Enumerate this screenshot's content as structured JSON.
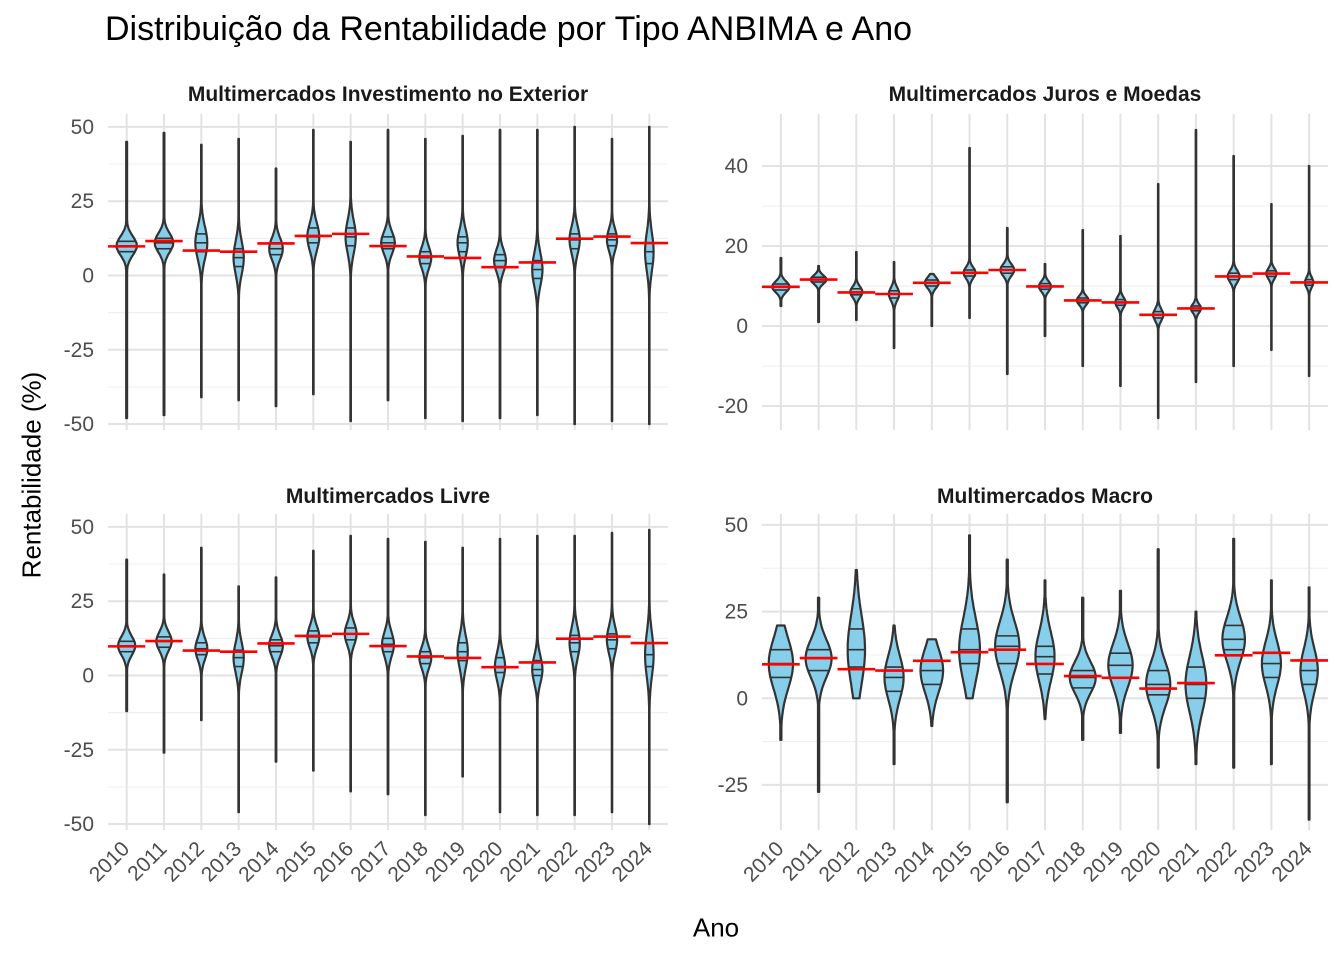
{
  "chart_data": {
    "type": "violin",
    "title": "Distribuição da Rentabilidade por Tipo ANBIMA e Ano",
    "xlabel": "Ano",
    "ylabel": "Rentabilidade (%)",
    "categories": [
      "2010",
      "2011",
      "2012",
      "2013",
      "2014",
      "2015",
      "2016",
      "2017",
      "2018",
      "2019",
      "2020",
      "2021",
      "2022",
      "2023",
      "2024"
    ],
    "reference_line_color": "#ff0000",
    "violin_fill": "#87ceeb",
    "violin_stroke": "#333333",
    "reference_values": [
      9.8,
      11.6,
      8.4,
      8.0,
      10.8,
      13.3,
      14.0,
      9.9,
      6.4,
      5.9,
      2.8,
      4.4,
      12.4,
      13.1,
      10.9
    ],
    "panels": [
      {
        "name": "Multimercados Investimento no Exterior",
        "ylim": [
          -52,
          53
        ],
        "yticks": [
          -50,
          -25,
          0,
          25,
          50
        ],
        "ytick_labels": [
          "-50",
          "-25",
          "0",
          "25",
          "50"
        ],
        "violins": [
          {
            "min": -48,
            "max": 45,
            "q1": 8,
            "median": 10,
            "q3": 11.5,
            "width": 0.6
          },
          {
            "min": -47,
            "max": 48,
            "q1": 9,
            "median": 11,
            "q3": 12.5,
            "width": 0.55
          },
          {
            "min": -41,
            "max": 44,
            "q1": 8,
            "median": 11,
            "q3": 14,
            "width": 0.35
          },
          {
            "min": -42,
            "max": 46,
            "q1": 3,
            "median": 6,
            "q3": 9,
            "width": 0.3
          },
          {
            "min": -44,
            "max": 36,
            "q1": 7,
            "median": 9,
            "q3": 11,
            "width": 0.4
          },
          {
            "min": -40,
            "max": 49,
            "q1": 11,
            "median": 13,
            "q3": 16,
            "width": 0.35
          },
          {
            "min": -49,
            "max": 45,
            "q1": 10,
            "median": 13,
            "q3": 16,
            "width": 0.3
          },
          {
            "min": -42,
            "max": 49,
            "q1": 9,
            "median": 11,
            "q3": 13,
            "width": 0.4
          },
          {
            "min": -48,
            "max": 46,
            "q1": 4,
            "median": 6,
            "q3": 8,
            "width": 0.35
          },
          {
            "min": -49,
            "max": 47,
            "q1": 8,
            "median": 11,
            "q3": 13,
            "width": 0.3
          },
          {
            "min": -48,
            "max": 49,
            "q1": 3,
            "median": 5,
            "q3": 7,
            "width": 0.35
          },
          {
            "min": -47,
            "max": 49,
            "q1": -1,
            "median": 2,
            "q3": 5,
            "width": 0.3
          },
          {
            "min": -50,
            "max": 50,
            "q1": 9,
            "median": 12,
            "q3": 14,
            "width": 0.3
          },
          {
            "min": -49,
            "max": 46,
            "q1": 10,
            "median": 12,
            "q3": 14,
            "width": 0.3
          },
          {
            "min": -50,
            "max": 50,
            "q1": 4,
            "median": 8,
            "q3": 11,
            "width": 0.25
          }
        ]
      },
      {
        "name": "Multimercados Juros e Moedas",
        "ylim": [
          -26,
          52
        ],
        "yticks": [
          -20,
          0,
          20,
          40
        ],
        "ytick_labels": [
          "-20",
          "0",
          "20",
          "40"
        ],
        "violins": [
          {
            "min": 5,
            "max": 17,
            "q1": 9,
            "median": 9.8,
            "q3": 10.5,
            "width": 0.5
          },
          {
            "min": 1,
            "max": 15,
            "q1": 11,
            "median": 11.6,
            "q3": 12.2,
            "width": 0.45
          },
          {
            "min": 1.5,
            "max": 18.5,
            "q1": 7.8,
            "median": 8.5,
            "q3": 9.3,
            "width": 0.35
          },
          {
            "min": -5.5,
            "max": 16,
            "q1": 7,
            "median": 8,
            "q3": 8.8,
            "width": 0.3
          },
          {
            "min": 0,
            "max": 13,
            "q1": 10,
            "median": 10.8,
            "q3": 11.5,
            "width": 0.4
          },
          {
            "min": 2,
            "max": 44.5,
            "q1": 12.5,
            "median": 13.3,
            "q3": 14,
            "width": 0.35
          },
          {
            "min": -12,
            "max": 24.5,
            "q1": 13.2,
            "median": 14,
            "q3": 14.8,
            "width": 0.4
          },
          {
            "min": -2.5,
            "max": 15.5,
            "q1": 9.2,
            "median": 9.9,
            "q3": 10.6,
            "width": 0.35
          },
          {
            "min": -10,
            "max": 24,
            "q1": 5.8,
            "median": 6.4,
            "q3": 7,
            "width": 0.35
          },
          {
            "min": -15,
            "max": 22.5,
            "q1": 5.2,
            "median": 5.9,
            "q3": 6.6,
            "width": 0.3
          },
          {
            "min": -23,
            "max": 35.5,
            "q1": 2,
            "median": 2.8,
            "q3": 3.6,
            "width": 0.3
          },
          {
            "min": -14,
            "max": 49,
            "q1": 3.8,
            "median": 4.4,
            "q3": 5,
            "width": 0.3
          },
          {
            "min": -10,
            "max": 42.5,
            "q1": 11.6,
            "median": 12.4,
            "q3": 13.2,
            "width": 0.35
          },
          {
            "min": -6,
            "max": 30.5,
            "q1": 12.4,
            "median": 13.1,
            "q3": 13.8,
            "width": 0.3
          },
          {
            "min": -12.5,
            "max": 40,
            "q1": 10.2,
            "median": 10.9,
            "q3": 11.6,
            "width": 0.25
          }
        ]
      },
      {
        "name": "Multimercados Livre",
        "ylim": [
          -52,
          53
        ],
        "yticks": [
          -50,
          -25,
          0,
          25,
          50
        ],
        "ytick_labels": [
          "-50",
          "-25",
          "0",
          "25",
          "50"
        ],
        "violins": [
          {
            "min": -12,
            "max": 39,
            "q1": 8,
            "median": 10,
            "q3": 11.5,
            "width": 0.5
          },
          {
            "min": -26,
            "max": 34,
            "q1": 9.5,
            "median": 11.5,
            "q3": 13,
            "width": 0.45
          },
          {
            "min": -15,
            "max": 43,
            "q1": 7,
            "median": 9,
            "q3": 11,
            "width": 0.35
          },
          {
            "min": -46,
            "max": 30,
            "q1": 3,
            "median": 6,
            "q3": 8.5,
            "width": 0.3
          },
          {
            "min": -29,
            "max": 33,
            "q1": 8,
            "median": 10,
            "q3": 12,
            "width": 0.4
          },
          {
            "min": -32,
            "max": 42,
            "q1": 11,
            "median": 13,
            "q3": 15,
            "width": 0.35
          },
          {
            "min": -39,
            "max": 47,
            "q1": 12,
            "median": 14,
            "q3": 16,
            "width": 0.35
          },
          {
            "min": -40,
            "max": 46,
            "q1": 8,
            "median": 10.5,
            "q3": 12.5,
            "width": 0.35
          },
          {
            "min": -47,
            "max": 45,
            "q1": 4,
            "median": 6,
            "q3": 8,
            "width": 0.35
          },
          {
            "min": -34,
            "max": 43,
            "q1": 5,
            "median": 8,
            "q3": 11,
            "width": 0.3
          },
          {
            "min": -46,
            "max": 46,
            "q1": 1,
            "median": 3,
            "q3": 6,
            "width": 0.3
          },
          {
            "min": -47,
            "max": 47,
            "q1": 0,
            "median": 2,
            "q3": 5,
            "width": 0.3
          },
          {
            "min": -47,
            "max": 47,
            "q1": 8,
            "median": 11,
            "q3": 13.5,
            "width": 0.3
          },
          {
            "min": -46,
            "max": 48,
            "q1": 9,
            "median": 12,
            "q3": 14,
            "width": 0.3
          },
          {
            "min": -50,
            "max": 49,
            "q1": 3,
            "median": 7,
            "q3": 11,
            "width": 0.25
          }
        ]
      },
      {
        "name": "Multimercados Macro",
        "ylim": [
          -38,
          52
        ],
        "yticks": [
          -25,
          0,
          25,
          50
        ],
        "ytick_labels": [
          "-25",
          "0",
          "25",
          "50"
        ],
        "violins": [
          {
            "min": -12,
            "max": 21,
            "q1": 6,
            "median": 10,
            "q3": 14,
            "width": 0.7
          },
          {
            "min": -27,
            "max": 29,
            "q1": 8,
            "median": 11.5,
            "q3": 14,
            "width": 0.75
          },
          {
            "min": 0,
            "max": 37,
            "q1": 9,
            "median": 14,
            "q3": 20,
            "width": 0.5
          },
          {
            "min": -19,
            "max": 21,
            "q1": 2,
            "median": 6,
            "q3": 9,
            "width": 0.55
          },
          {
            "min": -8,
            "max": 17,
            "q1": 4,
            "median": 8,
            "q3": 11,
            "width": 0.65
          },
          {
            "min": 0,
            "max": 47,
            "q1": 10,
            "median": 14,
            "q3": 20,
            "width": 0.6
          },
          {
            "min": -30,
            "max": 40,
            "q1": 10,
            "median": 15,
            "q3": 18,
            "width": 0.7
          },
          {
            "min": -6,
            "max": 34,
            "q1": 7,
            "median": 12,
            "q3": 15,
            "width": 0.55
          },
          {
            "min": -12,
            "max": 29,
            "q1": 3,
            "median": 6,
            "q3": 8,
            "width": 0.75
          },
          {
            "min": -10,
            "max": 31,
            "q1": 6,
            "median": 9.5,
            "q3": 13,
            "width": 0.7
          },
          {
            "min": -20,
            "max": 43,
            "q1": 1,
            "median": 4,
            "q3": 8,
            "width": 0.7
          },
          {
            "min": -19,
            "max": 25,
            "q1": 0,
            "median": 4,
            "q3": 9,
            "width": 0.6
          },
          {
            "min": -20,
            "max": 46,
            "q1": 14,
            "median": 17,
            "q3": 21,
            "width": 0.65
          },
          {
            "min": -19,
            "max": 34,
            "q1": 6,
            "median": 10,
            "q3": 13,
            "width": 0.55
          },
          {
            "min": -35,
            "max": 32,
            "q1": 4,
            "median": 8,
            "q3": 11,
            "width": 0.5
          }
        ]
      }
    ]
  }
}
